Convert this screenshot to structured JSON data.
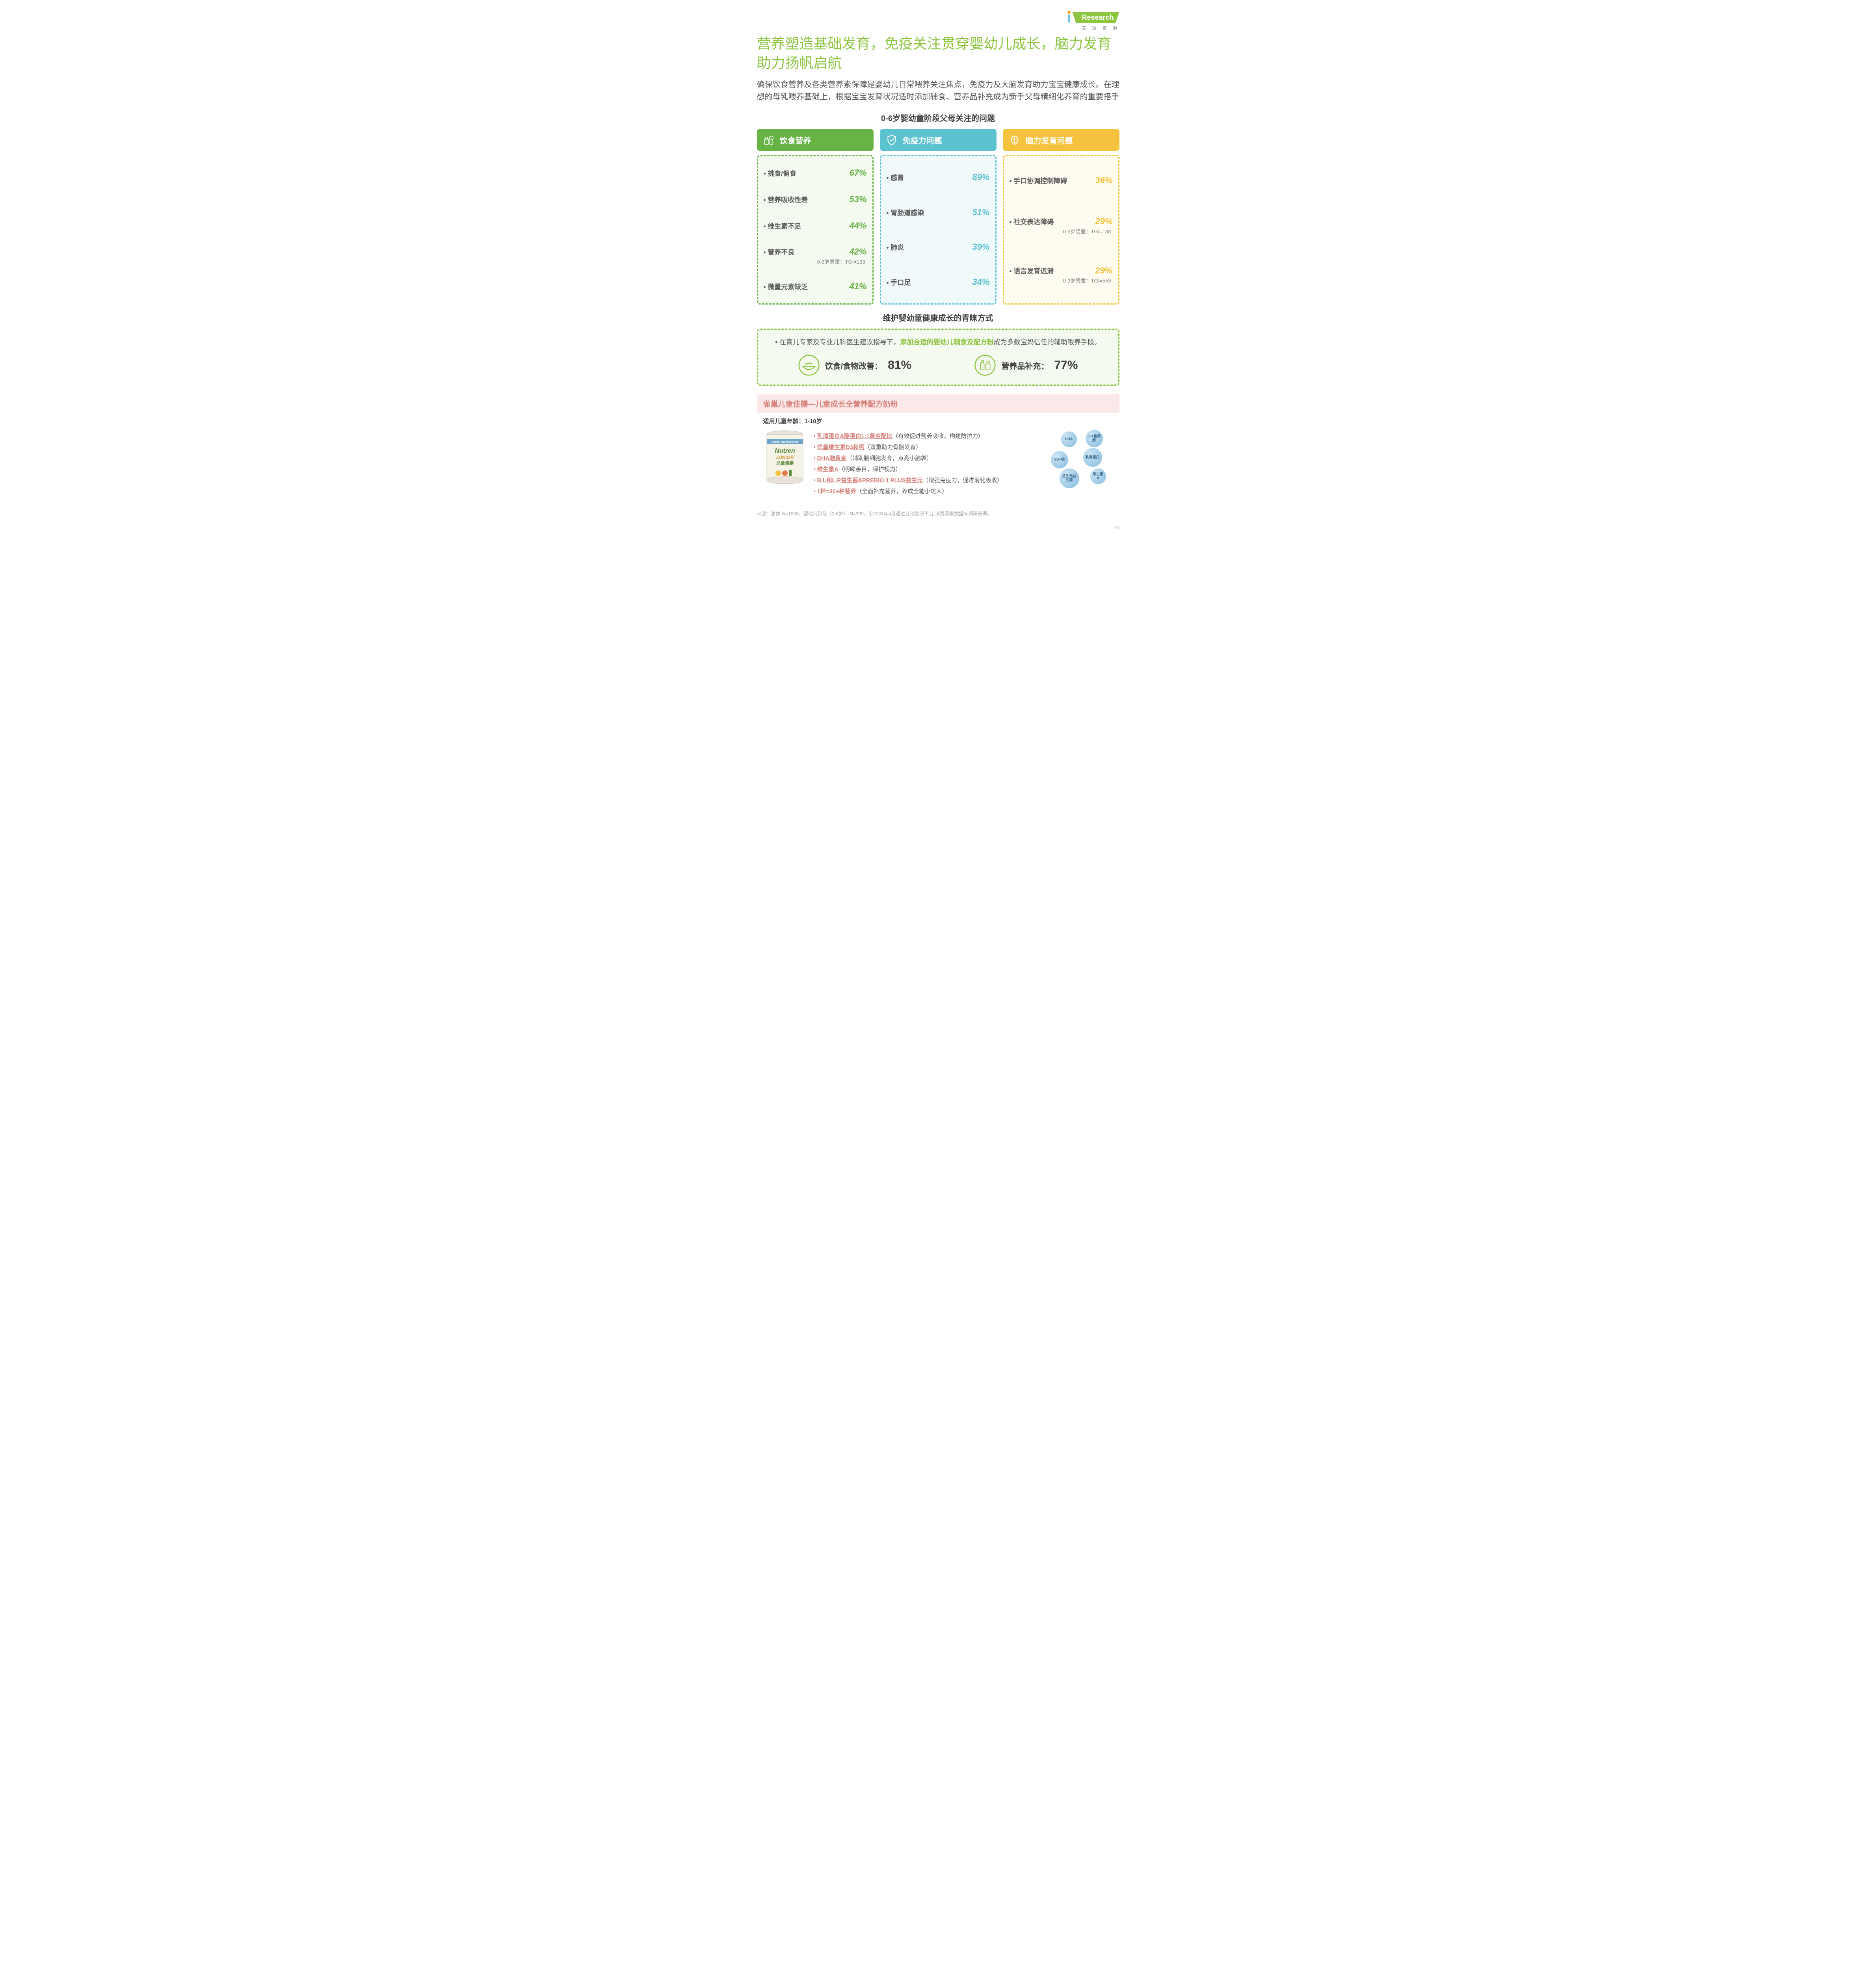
{
  "logo": {
    "text": "Research",
    "sub": "艾 瑞 咨 询"
  },
  "title": "营养塑造基础发育，免疫关注贯穿婴幼儿成长，脑力发育助力扬帆启航",
  "lead": "确保饮食营养及各类营养素保障是婴幼儿日常喂养关注焦点，免疫力及大脑发育助力宝宝健康成长。在理想的母乳喂养基础上，根据宝宝发育状况适时添加辅食、营养品补充成为新手父母精细化养育的重要搭手",
  "section1_title": "0-6岁婴幼童阶段父母关注的问题",
  "cols": [
    {
      "head": "饮食营养",
      "theme": "c-green",
      "items": [
        {
          "label": "挑食/偏食",
          "pct": "67%"
        },
        {
          "label": "营养吸收性差",
          "pct": "53%"
        },
        {
          "label": "维生素不足",
          "pct": "44%"
        },
        {
          "label": "营养不良",
          "pct": "42%",
          "note": "0-3岁男童：TGI=133"
        },
        {
          "label": "微量元素缺乏",
          "pct": "41%"
        }
      ]
    },
    {
      "head": "免疫力问题",
      "theme": "c-blue",
      "items": [
        {
          "label": "感冒",
          "pct": "89%"
        },
        {
          "label": "胃肠道感染",
          "pct": "51%"
        },
        {
          "label": "肺炎",
          "pct": "39%"
        },
        {
          "label": "手口足",
          "pct": "34%"
        }
      ]
    },
    {
      "head": "脑力发育问题",
      "theme": "c-yellow",
      "items": [
        {
          "label": "手口协调控制障碍",
          "pct": "36%"
        },
        {
          "label": "社交表达障碍",
          "pct": "29%",
          "note": "0-3岁男童：TGI=138"
        },
        {
          "label": "语言发育迟滞",
          "pct": "29%",
          "note": "0-3岁男童：TGI=559"
        }
      ]
    }
  ],
  "section2_title": "维护婴幼童健康成长的青睐方式",
  "advice_pre": "• 在育儿专家及专业儿科医生建议指导下，",
  "advice_hl": "添加合适的婴幼儿辅食及配方粉",
  "advice_post": "成为多数宝妈信任的辅助喂养手段。",
  "stats": [
    {
      "label": "饮食/食物改善：",
      "pct": "81%"
    },
    {
      "label": "营养品补充：",
      "pct": "77%"
    }
  ],
  "product": {
    "head": "雀巢儿童佳膳—儿童成长全营养配方奶粉",
    "age": "适用儿童年龄：1-10岁",
    "can": {
      "brand": "NestléHealthScience",
      "name1": "Nutren",
      "name2": "JUNIOR",
      "name3": "兒童佳膳"
    },
    "features": [
      {
        "u": "乳清蛋白&酪蛋白1:1黄金配比",
        "rest": "（有效促进营养吸收，构建防护力）"
      },
      {
        "u": "优量维生素D3和钙",
        "rest": "（双重助力骨骼发育）"
      },
      {
        "u": "DHA脑黄金",
        "rest": "（辅助脑细胞发育，点亮小脑袋）"
      },
      {
        "u": "维生素A",
        "rest": "（明眸善目，保护视力）"
      },
      {
        "u": "B.L和L.P益生菌&PREBIO 1 PLUS益生元",
        "rest": "（增强免疫力，促进消化吸收）"
      },
      {
        "u": "1杯=30+种营养",
        "rest": "（全面补充营养，养成全能小达人）"
      }
    ],
    "bubbles": [
      "DHA",
      "30+营养素",
      "VD+钙",
      "乳清蛋白",
      "维生素A",
      "益生元益生菌"
    ]
  },
  "source": "来源：总体-N=1500，婴幼儿阶段（0-6岁）-N=399，于2024年4月通过艾瑞智研平台-消费洞察数据库调研获得。",
  "pagenum": "15"
}
